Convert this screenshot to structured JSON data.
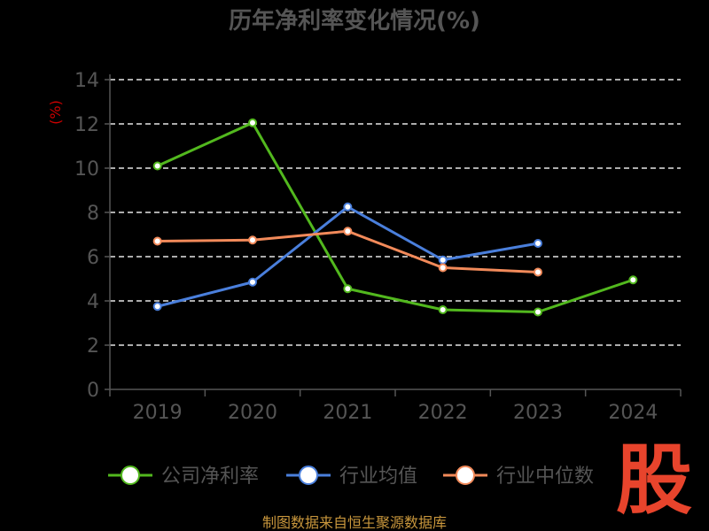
{
  "chart_data": {
    "type": "line",
    "title": "历年净利率变化情况(%)",
    "ylabel": "(%)",
    "categories": [
      "2019",
      "2020",
      "2021",
      "2022",
      "2023",
      "2024"
    ],
    "ylim": [
      0,
      14
    ],
    "yticks": [
      "0",
      "2",
      "4",
      "6",
      "8",
      "10",
      "12",
      "14"
    ],
    "grid": true,
    "legend_position": "bottom",
    "series": [
      {
        "name": "公司净利率",
        "color": "#52b81e",
        "values": [
          10.1,
          12.05,
          4.55,
          3.6,
          3.5,
          4.95
        ]
      },
      {
        "name": "行业均值",
        "color": "#4a7fdc",
        "values": [
          3.75,
          4.85,
          8.25,
          5.85,
          6.6,
          null
        ]
      },
      {
        "name": "行业中位数",
        "color": "#f28a5a",
        "values": [
          6.7,
          6.75,
          7.15,
          5.5,
          5.3,
          null
        ]
      }
    ]
  },
  "source_text": "制图数据来自恒生聚源数据库",
  "stamp_text": "股"
}
